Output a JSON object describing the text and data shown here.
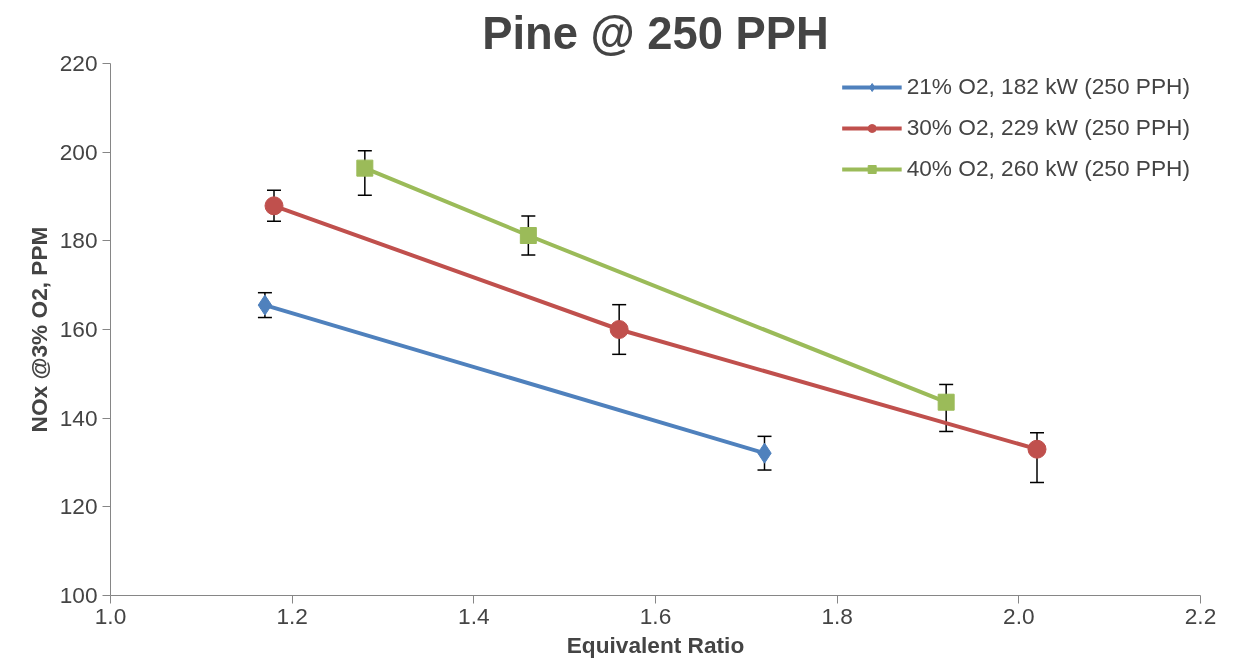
{
  "chart_data": {
    "type": "line",
    "title": "Pine @ 250 PPH",
    "xlabel": "Equivalent Ratio",
    "ylabel": "NOx @3% O2, PPM",
    "xlim": [
      1.0,
      2.2
    ],
    "xticks": [
      {
        "value": 1.0,
        "label": "1.0"
      },
      {
        "value": 1.2,
        "label": "1.2"
      },
      {
        "value": 1.4,
        "label": "1.4"
      },
      {
        "value": 1.6,
        "label": "1.6"
      },
      {
        "value": 1.8,
        "label": "1.8"
      },
      {
        "value": 2.0,
        "label": "2.0"
      },
      {
        "value": 2.2,
        "label": "2.2"
      }
    ],
    "ylim": [
      100,
      220
    ],
    "yticks": [
      100,
      120,
      140,
      160,
      180,
      200,
      220
    ],
    "grid": false,
    "legend": "top right",
    "series": [
      {
        "name": "21% O2, 182 kW (250 PPH)",
        "color": "#4f81bd",
        "marker": "diamond",
        "x": [
          1.17,
          1.72
        ],
        "values": [
          165.5,
          132.1
        ],
        "errors": [
          2.8,
          3.8
        ]
      },
      {
        "name": "30% O2, 229 kW (250 PPH)",
        "color": "#c0504d",
        "marker": "circle",
        "x": [
          1.18,
          1.56,
          2.02
        ],
        "values": [
          187.9,
          160.0,
          133.0
        ],
        "errors": [
          3.5,
          5.6,
          [
            125.5,
            136.7
          ]
        ]
      },
      {
        "name": "40% O2, 260 kW (250 PPH)",
        "color": "#9bbb59",
        "marker": "square",
        "x": [
          1.28,
          1.46,
          1.92
        ],
        "values": [
          196.4,
          181.2,
          143.6
        ],
        "errors": [
          [
            190.3,
            200.3
          ],
          4.4,
          [
            137.0,
            147.6
          ]
        ]
      }
    ]
  }
}
